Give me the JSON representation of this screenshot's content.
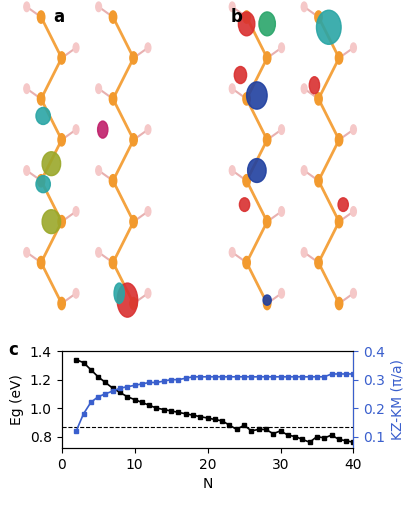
{
  "panel_labels": [
    "a",
    "b",
    "c"
  ],
  "chart_data": {
    "type": "line",
    "x_label": "N",
    "y_label": "Eg (eV)",
    "y2_label": "KZ-KM (π/a)",
    "xlim": [
      0,
      40
    ],
    "xticks": [
      0,
      10,
      20,
      30,
      40
    ],
    "ylim": [
      0.72,
      1.4
    ],
    "yticks": [
      0.8,
      1.0,
      1.2,
      1.4
    ],
    "y2lim": [
      0.06,
      0.4
    ],
    "y2ticks": [
      0.1,
      0.2,
      0.3,
      0.4
    ],
    "reference_line": 0.87,
    "x": [
      2,
      3,
      4,
      5,
      6,
      7,
      8,
      9,
      10,
      11,
      12,
      13,
      14,
      15,
      16,
      17,
      18,
      19,
      20,
      21,
      22,
      23,
      24,
      25,
      26,
      27,
      28,
      29,
      30,
      31,
      32,
      33,
      34,
      35,
      36,
      37,
      38,
      39,
      40
    ],
    "series": [
      {
        "color": "#000000",
        "marker": "square",
        "line_style": "solid",
        "values": [
          1.34,
          1.32,
          1.27,
          1.22,
          1.18,
          1.14,
          1.11,
          1.08,
          1.06,
          1.04,
          1.02,
          1.0,
          0.99,
          0.98,
          0.97,
          0.96,
          0.95,
          0.94,
          0.93,
          0.92,
          0.91,
          0.88,
          0.85,
          0.88,
          0.84,
          0.85,
          0.85,
          0.82,
          0.84,
          0.81,
          0.8,
          0.78,
          0.76,
          0.8,
          0.79,
          0.81,
          0.78,
          0.77,
          0.76
        ]
      },
      {
        "color": "#3a5fcd",
        "marker": "square",
        "line_style": "solid",
        "axis": "y2",
        "values": [
          0.12,
          0.18,
          0.22,
          0.24,
          0.25,
          0.26,
          0.27,
          0.275,
          0.28,
          0.285,
          0.29,
          0.29,
          0.295,
          0.3,
          0.3,
          0.305,
          0.31,
          0.31,
          0.31,
          0.31,
          0.31,
          0.31,
          0.31,
          0.31,
          0.31,
          0.31,
          0.31,
          0.31,
          0.31,
          0.31,
          0.31,
          0.31,
          0.31,
          0.31,
          0.31,
          0.32,
          0.32,
          0.32,
          0.32
        ]
      }
    ]
  }
}
